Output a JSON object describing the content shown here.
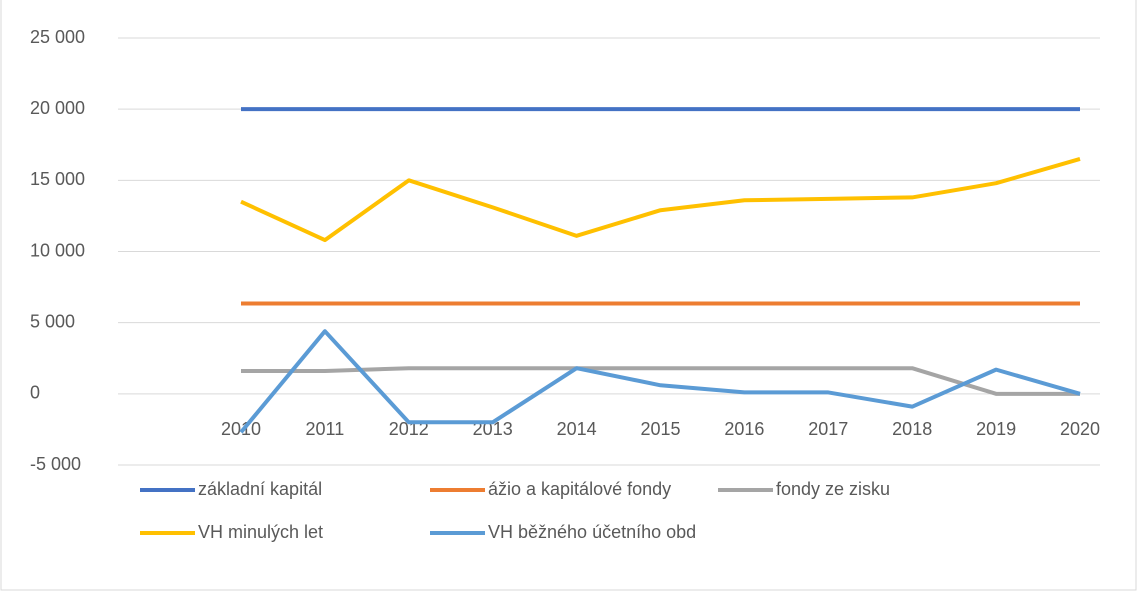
{
  "chart_data": {
    "type": "line",
    "categories": [
      "2010",
      "2011",
      "2012",
      "2013",
      "2014",
      "2015",
      "2016",
      "2017",
      "2018",
      "2019",
      "2020"
    ],
    "series": [
      {
        "name": "základní kapitál",
        "color": "#4472c4",
        "values": [
          20000,
          20000,
          20000,
          20000,
          20000,
          20000,
          20000,
          20000,
          20000,
          20000,
          20000
        ]
      },
      {
        "name": "ážio a kapitálové fondy",
        "color": "#ed7d31",
        "values": [
          6350,
          6350,
          6350,
          6350,
          6350,
          6350,
          6350,
          6350,
          6350,
          6350,
          6350
        ]
      },
      {
        "name": "fondy ze zisku",
        "color": "#a5a5a5",
        "values": [
          1600,
          1600,
          1800,
          1800,
          1800,
          1800,
          1800,
          1800,
          1800,
          0,
          0
        ]
      },
      {
        "name": "VH minulých let",
        "color": "#ffc000",
        "values": [
          13500,
          10800,
          15000,
          13100,
          11100,
          12900,
          13600,
          13700,
          13800,
          14800,
          16500
        ]
      },
      {
        "name": "VH běžného účetního obd",
        "color": "#5b9bd5",
        "values": [
          -2700,
          4400,
          -2000,
          -2000,
          1800,
          600,
          100,
          100,
          -900,
          1700,
          0
        ]
      }
    ],
    "ylim": [
      -5000,
      25000
    ],
    "yticks": [
      {
        "value": -5000,
        "label": "-5 000"
      },
      0,
      {
        "value": 5000,
        "label": "5 000"
      },
      {
        "value": 10000,
        "label": "10 000"
      },
      {
        "value": 15000,
        "label": "15 000"
      },
      {
        "value": 20000,
        "label": "20 000"
      },
      {
        "value": 25000,
        "label": "25 000"
      }
    ],
    "grid": true,
    "legend": "bottom"
  }
}
